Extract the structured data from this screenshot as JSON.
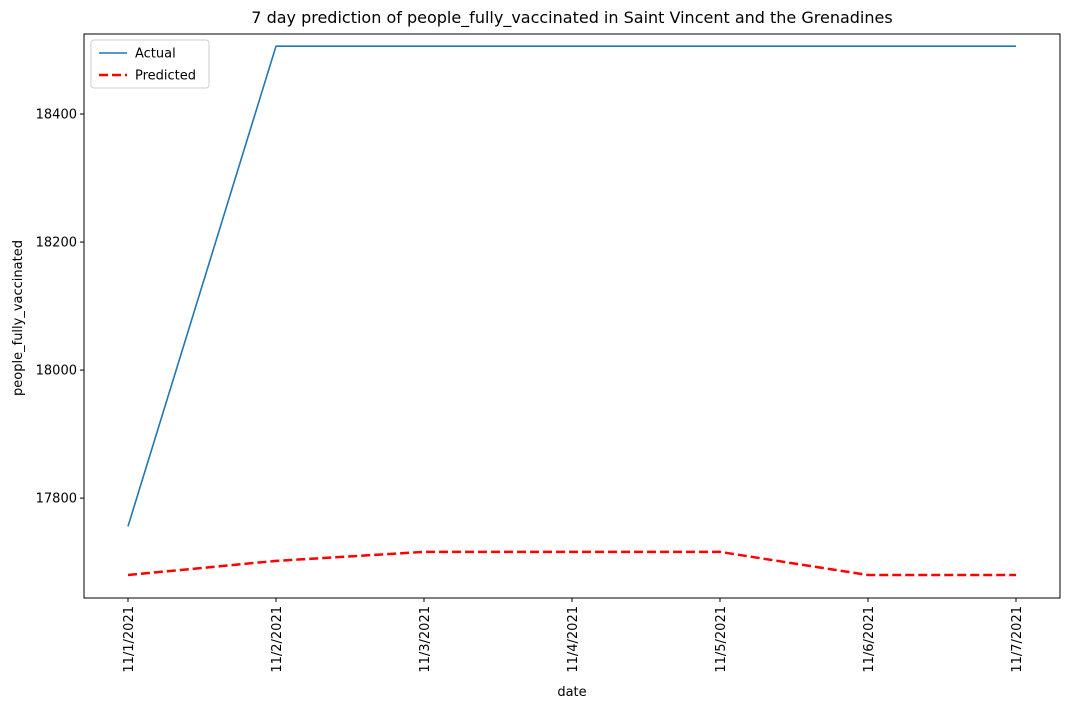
{
  "chart_data": {
    "type": "line",
    "title": "7 day prediction of people_fully_vaccinated in Saint Vincent and the Grenadines",
    "xlabel": "date",
    "ylabel": "people_fully_vaccinated",
    "categories": [
      "11/1/2021",
      "11/2/2021",
      "11/3/2021",
      "11/4/2021",
      "11/5/2021",
      "11/6/2021",
      "11/7/2021"
    ],
    "yticks": [
      17800,
      18000,
      18200,
      18400
    ],
    "ylim": [
      17644,
      18525
    ],
    "grid": false,
    "legend_position": "top-left",
    "series": [
      {
        "name": "Actual",
        "values": [
          17756,
          18506,
          18506,
          18506,
          18506,
          18506,
          18506
        ],
        "color": "#1f77b4",
        "style": "solid"
      },
      {
        "name": "Predicted",
        "values": [
          17680,
          17702,
          17716,
          17716,
          17716,
          17680,
          17680
        ],
        "color": "#ff0000",
        "style": "dashed"
      }
    ]
  }
}
